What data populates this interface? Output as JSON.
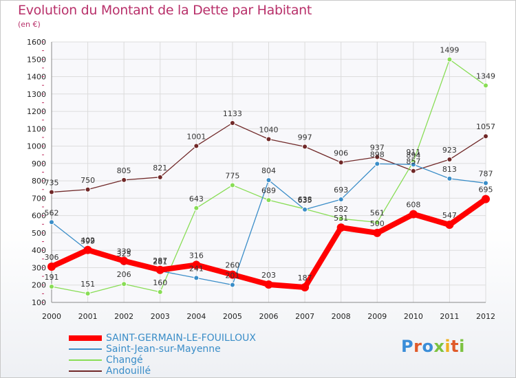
{
  "title": "Evolution du Montant de la Dette par Habitant",
  "subtitle": "(en €)",
  "logo": {
    "text": "Proxiti",
    "colors": [
      "#3a8dd8",
      "#e05a2a",
      "#7cc240",
      "#f0b020"
    ]
  },
  "chart_data": {
    "type": "line",
    "title": "Evolution du Montant de la Dette par Habitant",
    "ylabel": "(en €)",
    "x": [
      "2000",
      "2001",
      "2002",
      "2003",
      "2004",
      "2005",
      "2006",
      "2007",
      "2008",
      "2009",
      "2010",
      "2011",
      "2012"
    ],
    "yticks": [
      "100",
      "200",
      "300",
      "400",
      "500",
      "600",
      "700",
      "800",
      "900",
      "1000",
      "1100",
      "1200",
      "1300",
      "1400",
      "1500",
      "1600"
    ],
    "ylim": [
      100,
      1600
    ],
    "grid": true,
    "legend_position": "bottom",
    "series": [
      {
        "name": "SAINT-GERMAIN-LE-FOUILLOUX",
        "color": "#ff0000",
        "emphasis": true,
        "values": [
          306,
          402,
          339,
          287,
          316,
          260,
          203,
          187,
          531,
          500,
          608,
          547,
          695
        ],
        "labels": [
          "306",
          "402",
          "339",
          "287",
          "316",
          "260",
          "203",
          "187",
          "531",
          "500",
          "608",
          "547",
          "695"
        ]
      },
      {
        "name": "Saint-Jean-sur-Mayenne",
        "color": "#3a8dc8",
        "values": [
          562,
          399,
          325,
          281,
          241,
          201,
          804,
          635,
          693,
          898,
          894,
          813,
          787
        ],
        "labels": [
          "562",
          "399",
          "325",
          "281",
          "241",
          "201",
          "804",
          "635",
          "693",
          "898",
          "894",
          "813",
          "787"
        ]
      },
      {
        "name": "Changé",
        "color": "#88dd55",
        "values": [
          191,
          151,
          206,
          160,
          643,
          775,
          689,
          638,
          582,
          561,
          911,
          1499,
          1349
        ],
        "labels": [
          "191",
          "151",
          "206",
          "160",
          "643",
          "775",
          "689",
          "638",
          "582",
          "561",
          "911",
          "1499",
          "1349"
        ]
      },
      {
        "name": "Andouillé",
        "color": "#702828",
        "values": [
          735,
          750,
          805,
          821,
          1001,
          1133,
          1040,
          997,
          906,
          937,
          857,
          923,
          1057
        ],
        "labels": [
          "735",
          "750",
          "805",
          "821",
          "1001",
          "1133",
          "1040",
          "997",
          "906",
          "937",
          "857",
          "923",
          "1057"
        ]
      }
    ]
  }
}
